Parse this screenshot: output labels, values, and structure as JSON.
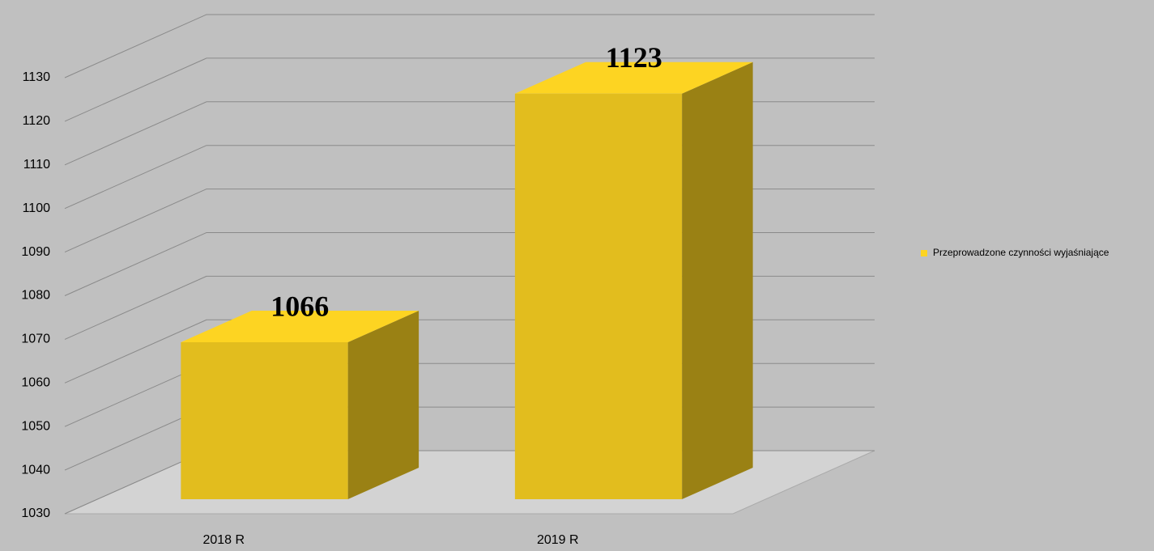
{
  "chart_data": {
    "type": "bar3d",
    "categories": [
      "2018 R",
      "2019 R"
    ],
    "series": [
      {
        "name": "Przeprowadzone czynności wyjaśniające",
        "color": "#e2bd1e",
        "values": [
          1066,
          1123
        ]
      }
    ],
    "ylim": [
      1030,
      1130
    ],
    "yticks": [
      1030,
      1040,
      1050,
      1060,
      1070,
      1080,
      1090,
      1100,
      1110,
      1120,
      1130
    ],
    "grid": true,
    "legend": "right"
  }
}
